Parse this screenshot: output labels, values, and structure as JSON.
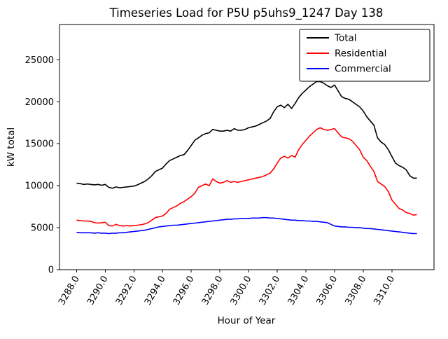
{
  "figure": {
    "title": "Timeseries Load for P5U p5uhs9_1247  Day 138"
  },
  "chart_data": {
    "type": "line",
    "title": "Timeseries Load for P5U p5uhs9_1247  Day 138",
    "xlabel": "Hour of Year",
    "ylabel": "kW total",
    "xlim": [
      3286.81,
      3312.94
    ],
    "ylim": [
      0,
      29200
    ],
    "grid": false,
    "legend_position": "upper right",
    "xticks": [
      3288,
      3290,
      3292,
      3294,
      3296,
      3298,
      3300,
      3302,
      3304,
      3306,
      3308,
      3310
    ],
    "xtick_labels": [
      "3288.0",
      "3290.0",
      "3292.0",
      "3294.0",
      "3296.0",
      "3298.0",
      "3300.0",
      "3302.0",
      "3304.0",
      "3306.0",
      "3308.0",
      "3310.0"
    ],
    "yticks": [
      0,
      5000,
      10000,
      15000,
      20000,
      25000
    ],
    "ytick_labels": [
      "0",
      "5000",
      "10000",
      "15000",
      "20000",
      "25000"
    ],
    "x": [
      3288.0,
      3288.25,
      3288.5,
      3288.75,
      3289.0,
      3289.25,
      3289.5,
      3289.75,
      3290.0,
      3290.25,
      3290.5,
      3290.75,
      3291.0,
      3291.25,
      3291.5,
      3291.75,
      3292.0,
      3292.25,
      3292.5,
      3292.75,
      3293.0,
      3293.25,
      3293.5,
      3293.75,
      3294.0,
      3294.25,
      3294.5,
      3294.75,
      3295.0,
      3295.25,
      3295.5,
      3295.75,
      3296.0,
      3296.25,
      3296.5,
      3296.75,
      3297.0,
      3297.25,
      3297.5,
      3297.75,
      3298.0,
      3298.25,
      3298.5,
      3298.75,
      3299.0,
      3299.25,
      3299.5,
      3299.75,
      3300.0,
      3300.25,
      3300.5,
      3300.75,
      3301.0,
      3301.25,
      3301.5,
      3301.75,
      3302.0,
      3302.25,
      3302.5,
      3302.75,
      3303.0,
      3303.25,
      3303.5,
      3303.75,
      3304.0,
      3304.25,
      3304.5,
      3304.75,
      3305.0,
      3305.25,
      3305.5,
      3305.75,
      3306.0,
      3306.25,
      3306.5,
      3306.75,
      3307.0,
      3307.25,
      3307.5,
      3307.75,
      3308.0,
      3308.25,
      3308.5,
      3308.75,
      3309.0,
      3309.25,
      3309.5,
      3309.75,
      3310.0,
      3310.25,
      3310.5,
      3310.75,
      3311.0,
      3311.25,
      3311.5,
      3311.75
    ],
    "series": [
      {
        "name": "Total",
        "color": "#000000",
        "values": [
          10300,
          10250,
          10150,
          10200,
          10150,
          10100,
          10150,
          10050,
          10150,
          9800,
          9700,
          9850,
          9750,
          9800,
          9850,
          9900,
          9950,
          10100,
          10300,
          10500,
          10800,
          11200,
          11700,
          11900,
          12100,
          12600,
          13000,
          13200,
          13400,
          13600,
          13700,
          14200,
          14800,
          15400,
          15700,
          16000,
          16200,
          16300,
          16700,
          16600,
          16500,
          16500,
          16600,
          16500,
          16800,
          16600,
          16600,
          16700,
          16900,
          17000,
          17100,
          17300,
          17500,
          17700,
          18000,
          18800,
          19400,
          19600,
          19300,
          19700,
          19200,
          19800,
          20500,
          21000,
          21400,
          21800,
          22100,
          22400,
          22400,
          22200,
          21900,
          21700,
          22000,
          21300,
          20600,
          20400,
          20300,
          20000,
          19700,
          19400,
          18900,
          18200,
          17700,
          17200,
          15700,
          15200,
          14900,
          14300,
          13500,
          12700,
          12400,
          12200,
          11900,
          11200,
          10900,
          10900
        ]
      },
      {
        "name": "Residential",
        "color": "#ff0000",
        "values": [
          5900,
          5850,
          5800,
          5800,
          5750,
          5600,
          5550,
          5600,
          5650,
          5250,
          5200,
          5400,
          5250,
          5200,
          5250,
          5200,
          5250,
          5300,
          5350,
          5450,
          5600,
          5900,
          6200,
          6300,
          6400,
          6700,
          7200,
          7400,
          7600,
          7900,
          8100,
          8400,
          8700,
          9100,
          9800,
          10000,
          10200,
          10000,
          10800,
          10500,
          10300,
          10400,
          10600,
          10400,
          10500,
          10400,
          10500,
          10600,
          10700,
          10800,
          10900,
          11000,
          11100,
          11300,
          11500,
          12000,
          12700,
          13300,
          13500,
          13300,
          13600,
          13400,
          14300,
          14900,
          15400,
          15900,
          16300,
          16700,
          16900,
          16700,
          16600,
          16700,
          16800,
          16300,
          15800,
          15700,
          15600,
          15300,
          14800,
          14300,
          13400,
          13000,
          12300,
          11700,
          10500,
          10200,
          9900,
          9300,
          8300,
          7800,
          7300,
          7100,
          6800,
          6700,
          6500,
          6550
        ]
      },
      {
        "name": "Commercial",
        "color": "#0000ff",
        "values": [
          4450,
          4400,
          4400,
          4400,
          4400,
          4350,
          4400,
          4350,
          4350,
          4300,
          4350,
          4350,
          4400,
          4400,
          4450,
          4500,
          4550,
          4600,
          4650,
          4700,
          4800,
          4900,
          5000,
          5100,
          5150,
          5200,
          5250,
          5300,
          5300,
          5350,
          5400,
          5450,
          5500,
          5550,
          5600,
          5650,
          5700,
          5750,
          5800,
          5850,
          5900,
          5950,
          6000,
          6000,
          6050,
          6050,
          6100,
          6100,
          6100,
          6150,
          6150,
          6150,
          6200,
          6200,
          6150,
          6150,
          6100,
          6050,
          6000,
          5950,
          5900,
          5900,
          5850,
          5850,
          5800,
          5800,
          5750,
          5750,
          5700,
          5650,
          5600,
          5400,
          5200,
          5150,
          5100,
          5100,
          5050,
          5050,
          5000,
          5000,
          4950,
          4900,
          4900,
          4850,
          4800,
          4750,
          4700,
          4650,
          4600,
          4550,
          4500,
          4450,
          4400,
          4350,
          4300,
          4300
        ]
      }
    ]
  }
}
